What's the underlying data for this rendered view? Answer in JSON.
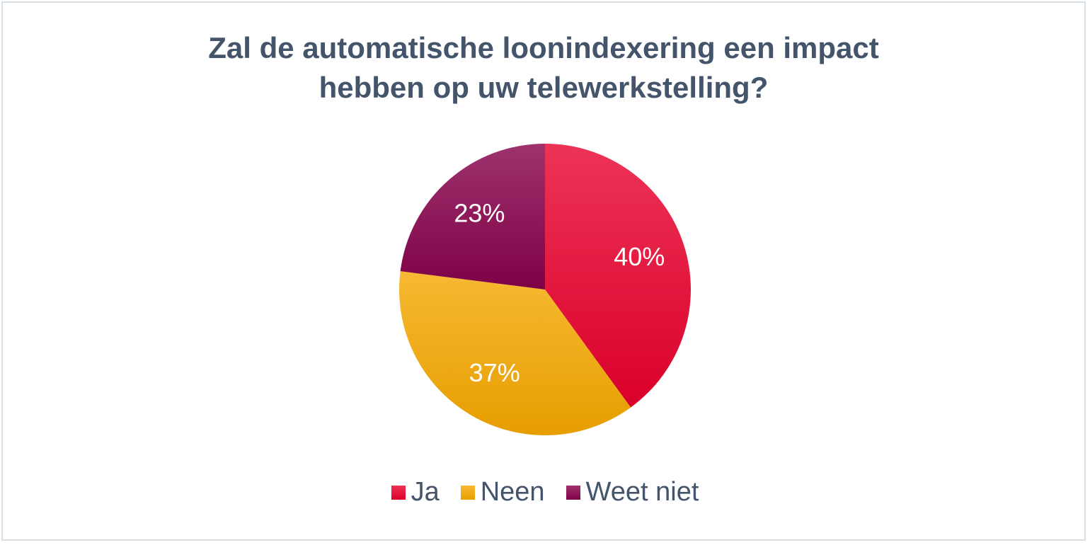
{
  "chart_data": {
    "type": "pie",
    "title_lines": [
      "Zal de automatische loonindexering een impact",
      "hebben op uw telewerkstelling?"
    ],
    "categories": [
      "Ja",
      "Neen",
      "Weet niet"
    ],
    "values": [
      40,
      37,
      23
    ],
    "labels": [
      "40%",
      "37%",
      "23%"
    ],
    "colors": [
      "#e8002d",
      "#f5a800",
      "#86004a"
    ],
    "legend_position": "bottom"
  }
}
